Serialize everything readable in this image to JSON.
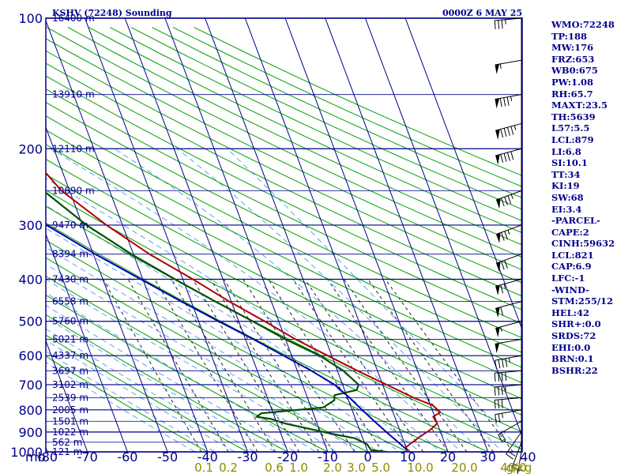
{
  "title_left": "KSHV (72248) Sounding",
  "title_right": "0000Z  6 MAY 25",
  "colors": {
    "frame": "#00008b",
    "isotherm": "#00008b",
    "dry_adiabat": "#00a000",
    "moist_adiabat": "#5aa0ff",
    "mixing_ratio": "#222222",
    "temperature": "#b00000",
    "dewpoint": "#005000",
    "parcel": "#0000b0",
    "wind": "#000000"
  },
  "chart_data": {
    "type": "line",
    "title": "KSHV (72248) Sounding",
    "xlabel": "",
    "ylabel": "mb",
    "x_unit_label": "",
    "pressure_levels": [
      100,
      200,
      300,
      400,
      500,
      600,
      700,
      800,
      900,
      1000
    ],
    "pressure_tick_labels": [
      "100",
      "200",
      "300",
      "400",
      "500",
      "600",
      "700",
      "800",
      "900",
      "1000"
    ],
    "y_axis_label": "mb",
    "temperature_ticks": [
      -80,
      -70,
      -60,
      -50,
      -40,
      -30,
      -20,
      -10,
      0,
      10,
      20,
      30,
      40
    ],
    "temperature_tick_labels": [
      "-80",
      "-70",
      "-60",
      "-50",
      "-40",
      "-30",
      "-20",
      "-10",
      "0",
      "10",
      "20",
      "30",
      "40"
    ],
    "mixing_ratio_labels": [
      "0.1",
      "0.2",
      "0.6",
      "1.0",
      "2.0",
      "3.0",
      "5.0",
      "10.0",
      "20.0",
      "40.0",
      "g/kg"
    ],
    "height_labels": [
      {
        "p": 100,
        "label": "16400 m"
      },
      {
        "p": 150,
        "label": "13910 m"
      },
      {
        "p": 200,
        "label": "12110 m"
      },
      {
        "p": 250,
        "label": "10690 m"
      },
      {
        "p": 300,
        "label": "9470 m"
      },
      {
        "p": 350,
        "label": "8394 m"
      },
      {
        "p": 400,
        "label": "7430 m"
      },
      {
        "p": 450,
        "label": "6558 m"
      },
      {
        "p": 500,
        "label": "5760 m"
      },
      {
        "p": 550,
        "label": "5021 m"
      },
      {
        "p": 600,
        "label": "4337 m"
      },
      {
        "p": 650,
        "label": "3697 m"
      },
      {
        "p": 700,
        "label": "3102 m"
      },
      {
        "p": 750,
        "label": "2539 m"
      },
      {
        "p": 800,
        "label": "2005 m"
      },
      {
        "p": 850,
        "label": "1501 m"
      },
      {
        "p": 900,
        "label": "1022 m"
      },
      {
        "p": 950,
        "label": "562 m"
      },
      {
        "p": 1000,
        "label": "121 m"
      }
    ],
    "series": [
      {
        "key": "temperature",
        "points": [
          [
            1008,
            10.0
          ],
          [
            975,
            10.0
          ],
          [
            925,
            14.2
          ],
          [
            890,
            17.6
          ],
          [
            860,
            20.0
          ],
          [
            830,
            19.6
          ],
          [
            810,
            21.8
          ],
          [
            780,
            20.5
          ],
          [
            750,
            16.5
          ],
          [
            700,
            11.0
          ],
          [
            650,
            5.0
          ],
          [
            600,
            -1.0
          ],
          [
            550,
            -7.5
          ],
          [
            500,
            -13.5
          ],
          [
            450,
            -20.5
          ],
          [
            400,
            -27.5
          ],
          [
            350,
            -36.0
          ],
          [
            300,
            -44.0
          ],
          [
            250,
            -52.0
          ],
          [
            225,
            -54.5
          ],
          [
            200,
            -55.5
          ],
          [
            175,
            -54.0
          ],
          [
            160,
            -52.5
          ],
          [
            150,
            -52.0
          ],
          [
            130,
            -53.0
          ],
          [
            115,
            -52.5
          ],
          [
            100,
            -53.0
          ]
        ]
      },
      {
        "key": "dewpoint",
        "points": [
          [
            1008,
            7.5
          ],
          [
            990,
            1.0
          ],
          [
            960,
            0.5
          ],
          [
            930,
            -2.0
          ],
          [
            910,
            -7.0
          ],
          [
            860,
            -18.0
          ],
          [
            840,
            -21.0
          ],
          [
            830,
            -24.5
          ],
          [
            815,
            -23.0
          ],
          [
            790,
            -7.0
          ],
          [
            760,
            -3.5
          ],
          [
            740,
            -3.0
          ],
          [
            720,
            3.0
          ],
          [
            700,
            4.0
          ],
          [
            650,
            1.5
          ],
          [
            600,
            -3.0
          ],
          [
            550,
            -10.0
          ],
          [
            500,
            -16.5
          ],
          [
            450,
            -24.0
          ],
          [
            400,
            -32.0
          ],
          [
            350,
            -40.5
          ],
          [
            300,
            -49.0
          ],
          [
            250,
            -56.5
          ],
          [
            225,
            -61.0
          ],
          [
            200,
            -67.0
          ],
          [
            175,
            -68.5
          ],
          [
            150,
            -70.5
          ],
          [
            130,
            -76.0
          ],
          [
            115,
            -79.0
          ],
          [
            100,
            -82.0
          ]
        ]
      },
      {
        "key": "parcel",
        "points": [
          [
            990,
            10.0
          ],
          [
            900,
            6.5
          ],
          [
            850,
            4.5
          ],
          [
            800,
            2.5
          ],
          [
            750,
            0.5
          ],
          [
            700,
            -2.0
          ],
          [
            650,
            -6.5
          ],
          [
            600,
            -12.0
          ],
          [
            550,
            -18.0
          ],
          [
            500,
            -25.0
          ],
          [
            450,
            -32.5
          ],
          [
            400,
            -40.5
          ],
          [
            350,
            -49.5
          ],
          [
            300,
            -59.0
          ],
          [
            250,
            -69.5
          ],
          [
            200,
            -81.0
          ],
          [
            175,
            -87.0
          ]
        ]
      }
    ]
  },
  "indices": [
    "WMO:72248",
    "TP:188",
    "MW:176",
    "FRZ:653",
    "WB0:675",
    "PW:1.08",
    "RH:65.7",
    "MAXT:23.5",
    "TH:5639",
    "L57:5.5",
    "LCL:879",
    "LI:6.8",
    "SI:10.1",
    "TT:34",
    "KI:19",
    "SW:68",
    "EI:3.4",
    "-PARCEL-",
    "CAPE:2",
    "CINH:59632",
    "LCL:821",
    "CAP:6.9",
    "LFC:-1",
    "-WIND-",
    "STM:255/12",
    "HEL:42",
    "SHR+:0.0",
    "SRDS:72",
    "EHI:0.0",
    "BRN:0.1",
    "BSHR:22"
  ],
  "wind_barbs": [
    {
      "p": 1000,
      "dir": 190,
      "spd": 10
    },
    {
      "p": 950,
      "dir": 200,
      "spd": 15
    },
    {
      "p": 900,
      "dir": 215,
      "spd": 20
    },
    {
      "p": 850,
      "dir": 240,
      "spd": 20
    },
    {
      "p": 800,
      "dir": 260,
      "spd": 25
    },
    {
      "p": 750,
      "dir": 265,
      "spd": 30
    },
    {
      "p": 700,
      "dir": 265,
      "spd": 35
    },
    {
      "p": 650,
      "dir": 265,
      "spd": 40
    },
    {
      "p": 600,
      "dir": 260,
      "spd": 45
    },
    {
      "p": 550,
      "dir": 260,
      "spd": 50
    },
    {
      "p": 500,
      "dir": 255,
      "spd": 55
    },
    {
      "p": 450,
      "dir": 255,
      "spd": 60
    },
    {
      "p": 400,
      "dir": 255,
      "spd": 65
    },
    {
      "p": 350,
      "dir": 250,
      "spd": 70
    },
    {
      "p": 300,
      "dir": 250,
      "spd": 75
    },
    {
      "p": 250,
      "dir": 250,
      "spd": 85
    },
    {
      "p": 200,
      "dir": 255,
      "spd": 90
    },
    {
      "p": 175,
      "dir": 255,
      "spd": 95
    },
    {
      "p": 150,
      "dir": 260,
      "spd": 85
    },
    {
      "p": 125,
      "dir": 260,
      "spd": 55
    },
    {
      "p": 100,
      "dir": 265,
      "spd": 35
    }
  ]
}
